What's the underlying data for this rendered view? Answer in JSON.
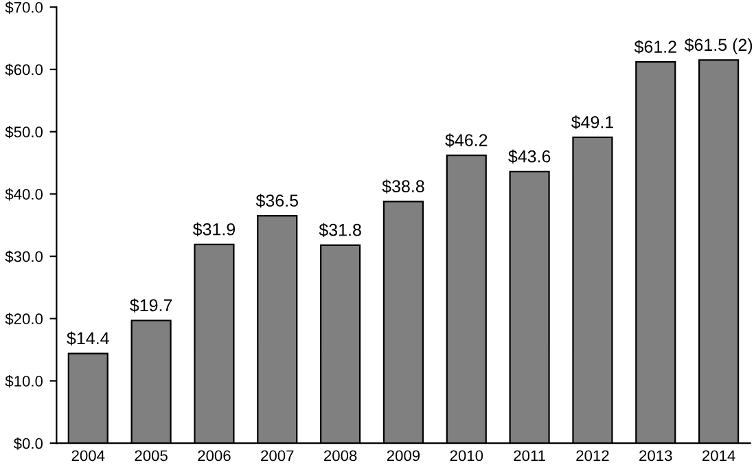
{
  "chart_data": {
    "type": "bar",
    "categories": [
      "2004",
      "2005",
      "2006",
      "2007",
      "2008",
      "2009",
      "2010",
      "2011",
      "2012",
      "2013",
      "2014"
    ],
    "values": [
      14.4,
      19.7,
      31.9,
      36.5,
      31.8,
      38.8,
      46.2,
      43.6,
      49.1,
      61.2,
      61.5
    ],
    "value_labels": [
      "$14.4",
      "$19.7",
      "$31.9",
      "$36.5",
      "$31.8",
      "$38.8",
      "$46.2",
      "$43.6",
      "$49.1",
      "$61.2",
      "$61.5 (2)"
    ],
    "color": "#808080",
    "ylim": [
      0,
      70
    ],
    "yticks": [
      {
        "value": 0,
        "label": "$0.0"
      },
      {
        "value": 10,
        "label": "$10.0"
      },
      {
        "value": 20,
        "label": "$20.0"
      },
      {
        "value": 30,
        "label": "$30.0"
      },
      {
        "value": 40,
        "label": "$40.0"
      },
      {
        "value": 50,
        "label": "$50.0"
      },
      {
        "value": 60,
        "label": "$60.0"
      },
      {
        "value": 70,
        "label": "$70.0"
      }
    ],
    "grid": false
  }
}
